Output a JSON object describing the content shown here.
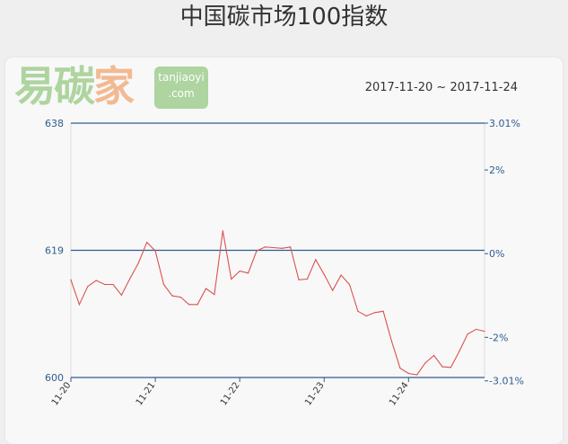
{
  "title": "中国碳市场100指数",
  "date_range": "2017-11-20 ~ 2017-11-24",
  "watermark": {
    "text": "易碳家",
    "site": "tanjiaoyi",
    "domain": ".com"
  },
  "colors": {
    "line": "#d9534f",
    "axis": "#2e5c8f",
    "text": "#2e5c8f"
  },
  "chart_data": {
    "type": "line",
    "title": "中国碳市场100指数",
    "ylim": [
      600,
      638
    ],
    "y_ticks": [
      "638",
      "619",
      "600"
    ],
    "y2_ticks": [
      {
        "label": "3.01%",
        "value": 638
      },
      {
        "label": "2%",
        "value": 631
      },
      {
        "label": "0%",
        "value": 618.5
      },
      {
        "label": "-2%",
        "value": 606
      },
      {
        "label": "-3.01%",
        "value": 599.5
      }
    ],
    "x_ticks": [
      {
        "label": "11-20",
        "index": 0
      },
      {
        "label": "11-21",
        "index": 10
      },
      {
        "label": "11-22",
        "index": 20
      },
      {
        "label": "11-23",
        "index": 30
      },
      {
        "label": "11-24",
        "index": 40
      }
    ],
    "grid_lines": [
      638,
      619,
      600
    ],
    "values": [
      614.6,
      610.9,
      613.6,
      614.5,
      613.9,
      613.9,
      612.3,
      614.8,
      617.1,
      620.2,
      618.9,
      613.9,
      612.2,
      612.0,
      610.9,
      610.9,
      613.3,
      612.4,
      621.9,
      614.7,
      615.9,
      615.6,
      618.9,
      619.5,
      619.4,
      619.3,
      619.5,
      614.6,
      614.7,
      617.6,
      615.4,
      613.0,
      615.3,
      613.9,
      609.9,
      609.2,
      609.7,
      609.9,
      605.4,
      601.4,
      600.6,
      600.4,
      602.2,
      603.3,
      601.6,
      601.5,
      603.9,
      606.5,
      607.2,
      606.9
    ]
  }
}
